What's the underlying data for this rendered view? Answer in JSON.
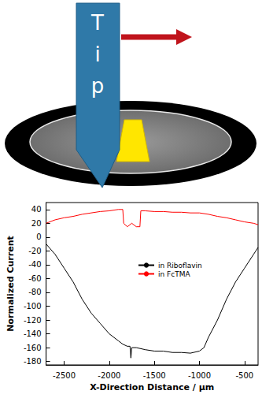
{
  "schematic": {
    "label": "Tip"
  },
  "chart_data": {
    "type": "line",
    "x_label": "X-Direction Distance / μm",
    "y_label": "Normalized Current",
    "xlim": [
      -2700,
      -350
    ],
    "xticks": [
      -2500,
      -2000,
      -1500,
      -1000,
      -500
    ],
    "ylim": [
      -185,
      50
    ],
    "yticks": [
      -180,
      -160,
      -140,
      -120,
      -100,
      -80,
      -60,
      -40,
      -20,
      0,
      20,
      40
    ],
    "grid": false,
    "legend": "center",
    "series": [
      {
        "name": "in Riboflavin",
        "color": "#000000",
        "x": [
          -2700,
          -2600,
          -2500,
          -2400,
          -2300,
          -2200,
          -2100,
          -2000,
          -1900,
          -1850,
          -1800,
          -1770,
          -1760,
          -1750,
          -1700,
          -1600,
          -1500,
          -1400,
          -1300,
          -1200,
          -1100,
          -1000,
          -950,
          -900,
          -800,
          -700,
          -600,
          -500,
          -400,
          -350
        ],
        "values": [
          -10,
          -25,
          -45,
          -65,
          -90,
          -110,
          -125,
          -140,
          -150,
          -155,
          -158,
          -158,
          -175,
          -160,
          -160,
          -163,
          -165,
          -165,
          -167,
          -167,
          -168,
          -165,
          -160,
          -145,
          -120,
          -90,
          -65,
          -45,
          -25,
          -15
        ]
      },
      {
        "name": "in FcTMA",
        "color": "#ff0000",
        "x": [
          -2700,
          -2600,
          -2500,
          -2400,
          -2300,
          -2200,
          -2100,
          -2000,
          -1900,
          -1850,
          -1840,
          -1800,
          -1750,
          -1700,
          -1660,
          -1650,
          -1600,
          -1500,
          -1400,
          -1300,
          -1200,
          -1100,
          -1000,
          -900,
          -800,
          -700,
          -600,
          -500,
          -400,
          -350
        ],
        "values": [
          20,
          25,
          28,
          30,
          33,
          35,
          37,
          38,
          40,
          40,
          20,
          15,
          20,
          15,
          15,
          38,
          38,
          37,
          37,
          36,
          36,
          35,
          35,
          33,
          30,
          28,
          25,
          22,
          20,
          18
        ]
      }
    ]
  }
}
